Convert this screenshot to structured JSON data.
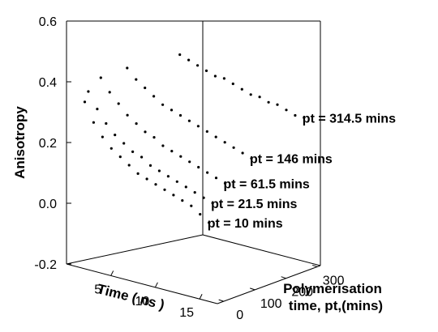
{
  "chart_data": {
    "type": "scatter",
    "projection": "3d",
    "xlabel": "Time ( ns )",
    "ylabel": "Polymerisation time, pt,(mins)",
    "zlabel": "Anisotropy",
    "x_ticks": [
      "5",
      "10",
      "15"
    ],
    "y_ticks": [
      "0",
      "100",
      "200",
      "300"
    ],
    "z_ticks": [
      "0.6",
      "0.4",
      "0.2",
      "0.0",
      "-0.2"
    ],
    "xlim": [
      0,
      17
    ],
    "ylim": [
      -20,
      310
    ],
    "zlim": [
      -0.2,
      0.6
    ],
    "series": [
      {
        "name": "pt = 10 mins",
        "pt": 10,
        "x": [
          1,
          2,
          3,
          4,
          5,
          6,
          7,
          8,
          9,
          10,
          11,
          12,
          13,
          14,
          15
        ],
        "values": [
          0.33,
          0.27,
          0.23,
          0.2,
          0.18,
          0.16,
          0.14,
          0.13,
          0.12,
          0.11,
          0.1,
          0.09,
          0.08,
          0.06,
          0.04
        ]
      },
      {
        "name": "pt = 21.5 mins",
        "pt": 21.5,
        "x": [
          1,
          2,
          3,
          4,
          5,
          6,
          7,
          8,
          9,
          10,
          11,
          12,
          13,
          14,
          15
        ],
        "values": [
          0.36,
          0.31,
          0.27,
          0.24,
          0.22,
          0.2,
          0.19,
          0.17,
          0.16,
          0.15,
          0.14,
          0.13,
          0.12,
          0.11,
          0.1
        ]
      },
      {
        "name": "pt = 61.5 mins",
        "pt": 61.5,
        "x": [
          1,
          2,
          3,
          4,
          5,
          6,
          7,
          8,
          9,
          10,
          11,
          12,
          13,
          14,
          15
        ],
        "values": [
          0.39,
          0.35,
          0.32,
          0.29,
          0.27,
          0.25,
          0.24,
          0.22,
          0.21,
          0.2,
          0.19,
          0.18,
          0.17,
          0.16,
          0.15
        ]
      },
      {
        "name": "pt = 146 mins",
        "pt": 146,
        "x": [
          1,
          2,
          3,
          4,
          5,
          6,
          7,
          8,
          9,
          10,
          11,
          12,
          13,
          14,
          15
        ],
        "values": [
          0.39,
          0.36,
          0.34,
          0.32,
          0.3,
          0.29,
          0.28,
          0.27,
          0.26,
          0.25,
          0.24,
          0.23,
          0.22,
          0.21,
          0.2
        ]
      },
      {
        "name": "pt = 314.5 mins",
        "pt": 314.5,
        "x": [
          1,
          2,
          3,
          4,
          5,
          6,
          7,
          8,
          9,
          10,
          11,
          12,
          13,
          14,
          15
        ],
        "values": [
          0.37,
          0.36,
          0.35,
          0.34,
          0.33,
          0.33,
          0.32,
          0.31,
          0.3,
          0.3,
          0.29,
          0.29,
          0.28,
          0.27,
          0.27
        ]
      }
    ]
  }
}
